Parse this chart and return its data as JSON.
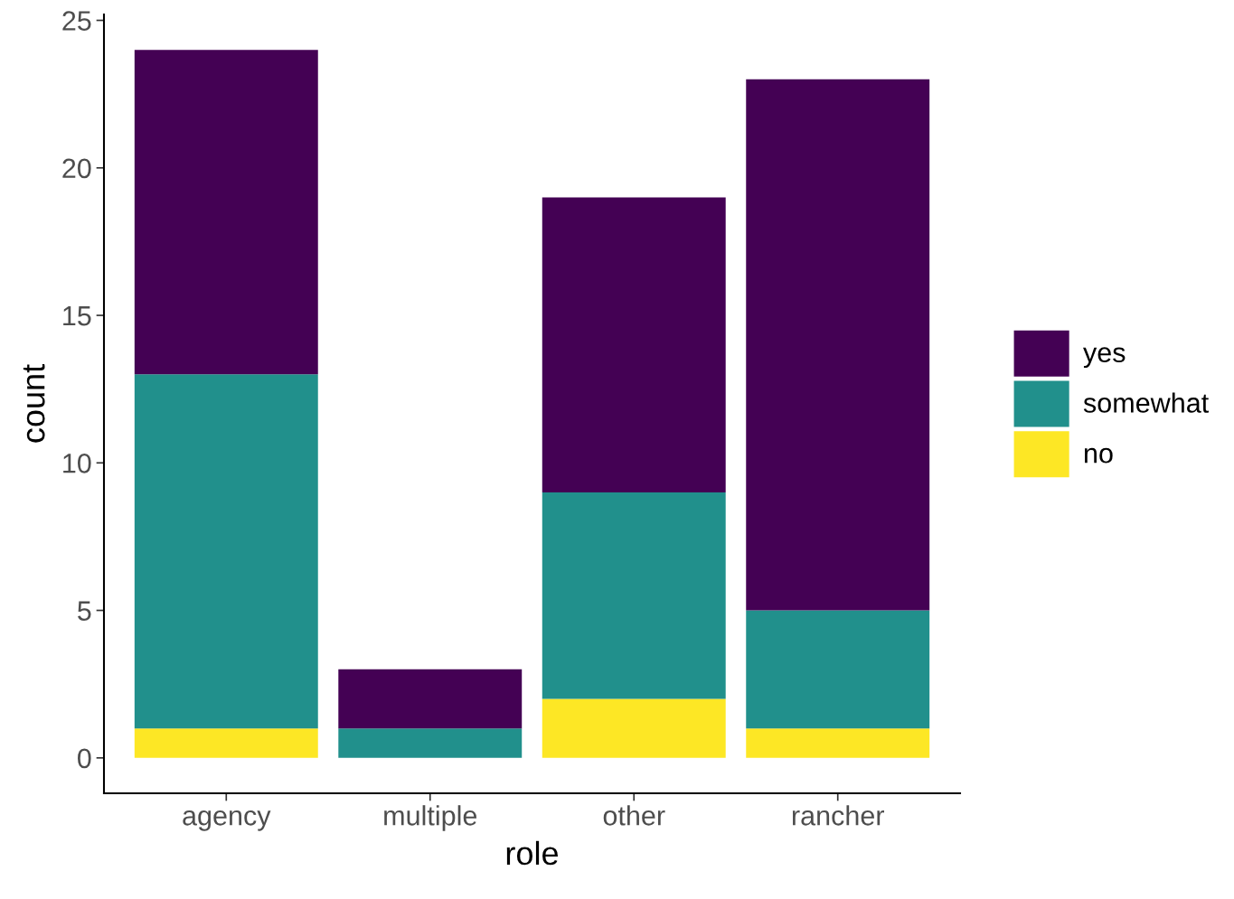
{
  "chart_data": {
    "type": "bar",
    "stacked": true,
    "xlabel": "role",
    "ylabel": "count",
    "categories": [
      "agency",
      "multiple",
      "other",
      "rancher"
    ],
    "series": [
      {
        "name": "no",
        "color": "#fde725",
        "values": [
          1,
          0,
          2,
          1
        ]
      },
      {
        "name": "somewhat",
        "color": "#21908c",
        "values": [
          12,
          1,
          7,
          4
        ]
      },
      {
        "name": "yes",
        "color": "#440154",
        "values": [
          11,
          2,
          10,
          18
        ]
      }
    ],
    "ylim": [
      -1.2,
      25.2
    ],
    "yticks": [
      0,
      5,
      10,
      15,
      20,
      25
    ],
    "grid": false,
    "legend": "right"
  }
}
